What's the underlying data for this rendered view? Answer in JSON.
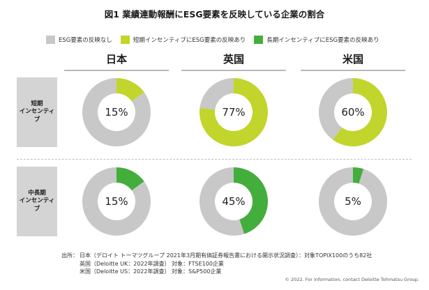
{
  "title": "図1 業績連動報酬にESG要素を反映している企業の割合",
  "legend": [
    {
      "label": "ESG要素の反映なし",
      "color": "#c8c8c8"
    },
    {
      "label": "短期インセンティブにESG要素の反映あり",
      "color": "#c2d52c"
    },
    {
      "label": "長期インセンティブにESG要素の反映あり",
      "color": "#44ae3c"
    }
  ],
  "countries": [
    "日本",
    "英国",
    "米国"
  ],
  "rows": [
    {
      "label_line1": "短期",
      "label_line2": "インセンティブ"
    },
    {
      "label_line1": "中長期",
      "label_line2": "インセンティブ"
    }
  ],
  "chart_data": {
    "type": "pie",
    "title": "図1 業績連動報酬にESG要素を反映している企業の割合",
    "donuts": [
      {
        "country": "日本",
        "row": "短期インセンティブ",
        "value": 15,
        "label": "15%",
        "color": "#c2d52c"
      },
      {
        "country": "英国",
        "row": "短期インセンティブ",
        "value": 77,
        "label": "77%",
        "color": "#c2d52c"
      },
      {
        "country": "米国",
        "row": "短期インセンティブ",
        "value": 60,
        "label": "60%",
        "color": "#c2d52c"
      },
      {
        "country": "日本",
        "row": "中長期インセンティブ",
        "value": 15,
        "label": "15%",
        "color": "#44ae3c"
      },
      {
        "country": "英国",
        "row": "中長期インセンティブ",
        "value": 45,
        "label": "45%",
        "color": "#44ae3c"
      },
      {
        "country": "米国",
        "row": "中長期インセンティブ",
        "value": 5,
        "label": "5%",
        "color": "#44ae3c"
      }
    ],
    "remainder_color": "#c8c8c8"
  },
  "source": {
    "prefix": "出所：",
    "lines": [
      "日本（デロイト トーマツグループ 2021年3月期有価証券報告書における開示状況調査）：対象TOPIX100のうち82社",
      "英国（Deloitte UK：2022年調査） 対象：FTSE100企業",
      "米国（Deloitte US：2022年調査） 対象：S&P500企業"
    ]
  },
  "copyright": "© 2022. For information, contact Deloitte Tohmatsu Group."
}
